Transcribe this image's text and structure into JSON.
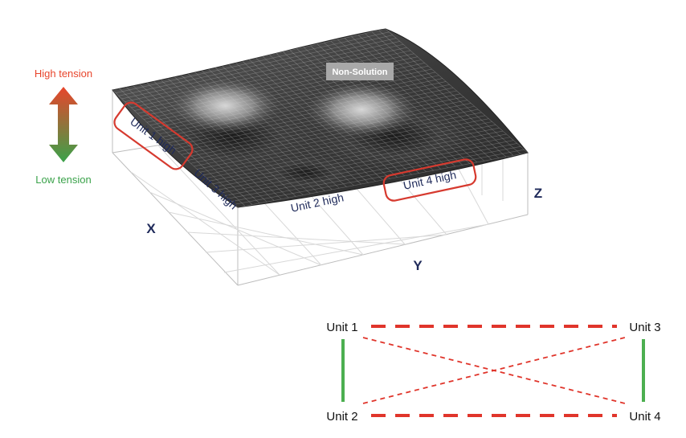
{
  "tension_scale": {
    "high_label": "High tension",
    "low_label": "Low tension",
    "high_color": "#e8452c",
    "low_color": "#3aa24a"
  },
  "surface": {
    "badge": "Non-Solution",
    "axes": {
      "x": "X",
      "y": "Y",
      "z": "Z"
    },
    "regions": {
      "unit1": "Unit 1 high",
      "unit2": "Unit 2 high",
      "unit3": "Unit 3 high",
      "unit4": "Unit 4 high"
    },
    "highlight_color": "#d63a2f"
  },
  "network": {
    "nodes": {
      "unit1": "Unit 1",
      "unit2": "Unit 2",
      "unit3": "Unit 3",
      "unit4": "Unit 4"
    },
    "connections": [
      {
        "from": "Unit 1",
        "to": "Unit 3",
        "style": "dashed-thick",
        "color": "#e0352b"
      },
      {
        "from": "Unit 2",
        "to": "Unit 4",
        "style": "dashed-thick",
        "color": "#e0352b"
      },
      {
        "from": "Unit 1",
        "to": "Unit 4",
        "style": "dashed-thin",
        "color": "#e0352b"
      },
      {
        "from": "Unit 2",
        "to": "Unit 3",
        "style": "dashed-thin",
        "color": "#e0352b"
      },
      {
        "from": "Unit 1",
        "to": "Unit 2",
        "style": "solid",
        "color": "#4caf50"
      },
      {
        "from": "Unit 3",
        "to": "Unit 4",
        "style": "solid",
        "color": "#4caf50"
      }
    ]
  }
}
